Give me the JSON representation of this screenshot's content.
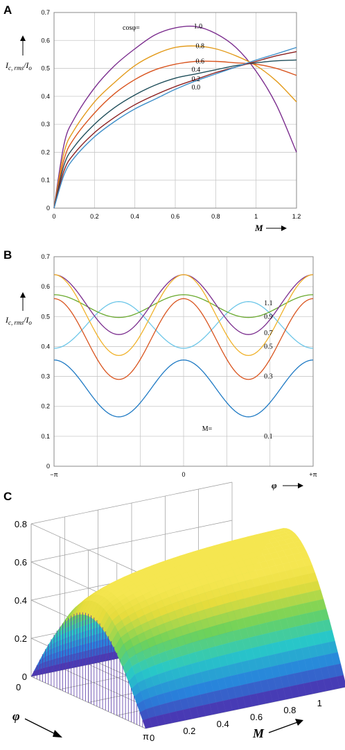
{
  "chart_data": [
    {
      "panel": "A",
      "type": "line",
      "xlabel": "M",
      "ylabel_main": "I",
      "ylabel_sub": "c, rms",
      "ylabel_div": "/I",
      "ylabel_sub2": "o",
      "xlim": [
        0,
        1.2
      ],
      "ylim": [
        0,
        0.7
      ],
      "xticks": [
        "0",
        "0.2",
        "0.4",
        "0.6",
        "0.8",
        "1",
        "1.2"
      ],
      "yticks": [
        "0",
        "0.1",
        "0.2",
        "0.3",
        "0.4",
        "0.5",
        "0.6",
        "0.7"
      ],
      "legend_prefix": "cosφ=",
      "series": [
        {
          "name": "1.0",
          "color": "#7b2d8e",
          "x": [
            0,
            0.05,
            0.1,
            0.2,
            0.3,
            0.4,
            0.5,
            0.6,
            0.7,
            0.8,
            0.9,
            1.0,
            1.1,
            1.2
          ],
          "values": [
            0,
            0.23,
            0.32,
            0.43,
            0.51,
            0.57,
            0.62,
            0.645,
            0.65,
            0.625,
            0.575,
            0.49,
            0.37,
            0.2
          ]
        },
        {
          "name": "0.8",
          "color": "#e39b1b",
          "x": [
            0,
            0.05,
            0.1,
            0.2,
            0.3,
            0.4,
            0.5,
            0.6,
            0.7,
            0.8,
            0.9,
            1.0,
            1.1,
            1.2
          ],
          "values": [
            0,
            0.2,
            0.28,
            0.38,
            0.45,
            0.51,
            0.55,
            0.575,
            0.58,
            0.57,
            0.545,
            0.51,
            0.455,
            0.38
          ]
        },
        {
          "name": "0.6",
          "color": "#d9541e",
          "x": [
            0,
            0.05,
            0.1,
            0.2,
            0.3,
            0.4,
            0.5,
            0.6,
            0.7,
            0.8,
            0.9,
            1.0,
            1.1,
            1.2
          ],
          "values": [
            0,
            0.175,
            0.25,
            0.34,
            0.41,
            0.46,
            0.495,
            0.515,
            0.525,
            0.525,
            0.52,
            0.515,
            0.5,
            0.475
          ]
        },
        {
          "name": "0.4",
          "color": "#1f4e5a",
          "x": [
            0,
            0.05,
            0.1,
            0.2,
            0.3,
            0.4,
            0.5,
            0.6,
            0.7,
            0.8,
            0.9,
            1.0,
            1.1,
            1.2
          ],
          "values": [
            0,
            0.155,
            0.22,
            0.3,
            0.36,
            0.405,
            0.44,
            0.465,
            0.48,
            0.495,
            0.51,
            0.52,
            0.527,
            0.53
          ]
        },
        {
          "name": "0.2",
          "color": "#8b1f1f",
          "x": [
            0,
            0.05,
            0.1,
            0.2,
            0.3,
            0.4,
            0.5,
            0.6,
            0.7,
            0.8,
            0.9,
            1.0,
            1.1,
            1.2
          ],
          "values": [
            0,
            0.135,
            0.195,
            0.27,
            0.325,
            0.37,
            0.405,
            0.435,
            0.46,
            0.485,
            0.505,
            0.525,
            0.545,
            0.56
          ]
        },
        {
          "name": "0.0",
          "color": "#3e8fc9",
          "x": [
            0,
            0.05,
            0.1,
            0.2,
            0.3,
            0.4,
            0.5,
            0.6,
            0.7,
            0.8,
            0.9,
            1.0,
            1.1,
            1.2
          ],
          "values": [
            0,
            0.12,
            0.18,
            0.255,
            0.31,
            0.355,
            0.39,
            0.425,
            0.455,
            0.48,
            0.505,
            0.53,
            0.552,
            0.575
          ]
        }
      ]
    },
    {
      "panel": "B",
      "type": "line",
      "xlabel": "φ",
      "ylabel_main": "I",
      "ylabel_sub": "c, rms",
      "ylabel_div": "/I",
      "ylabel_sub2": "o",
      "xlim": [
        -3.14159,
        3.14159
      ],
      "ylim": [
        0,
        0.7
      ],
      "xticks": [
        "−π",
        "0",
        "+π"
      ],
      "yticks": [
        "0",
        "0.1",
        "0.2",
        "0.3",
        "0.4",
        "0.5",
        "0.6",
        "0.7"
      ],
      "legend_prefix": "M=",
      "series": [
        {
          "name": "1.1",
          "color": "#6cc6e8",
          "mean": 0.472,
          "amp": -0.078
        },
        {
          "name": "0.9",
          "color": "#6aaa2e",
          "mean": 0.535,
          "amp": 0.038
        },
        {
          "name": "0.7",
          "color": "#7b2d8e",
          "mean": 0.54,
          "amp": 0.1
        },
        {
          "name": "0.5",
          "color": "#f0b22a",
          "mean": 0.505,
          "amp": 0.135
        },
        {
          "name": "0.3",
          "color": "#d9541e",
          "mean": 0.425,
          "amp": 0.135
        },
        {
          "name": "0.1",
          "color": "#1f7ac4",
          "mean": 0.26,
          "amp": 0.095
        }
      ]
    },
    {
      "panel": "C",
      "type": "surface",
      "xlabel": "M",
      "ylabel": "φ",
      "xticks": [
        "0",
        "0.2",
        "0.4",
        "0.6",
        "0.8",
        "1"
      ],
      "yticks": [
        "0",
        "π"
      ],
      "zticks": [
        "0",
        "0.2",
        "0.4",
        "0.6",
        "0.8"
      ],
      "zlim": [
        0,
        0.8
      ]
    }
  ]
}
